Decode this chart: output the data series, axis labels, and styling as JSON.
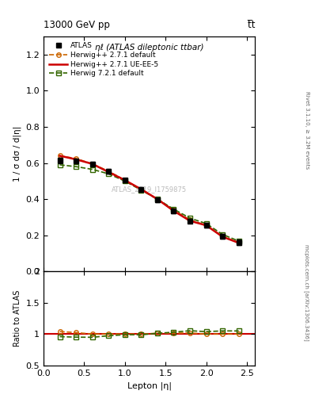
{
  "title_top": "13000 GeV pp",
  "title_top_right": "t̅t",
  "main_title": "ηℓ (ATLAS dileptonic ttbar)",
  "watermark": "ATLAS_2019_I1759875",
  "right_label_top": "Rivet 3.1.10, ≥ 3.2M events",
  "right_label_bottom": "mcplots.cern.ch [arXiv:1306.3436]",
  "xlabel": "Lepton |η|",
  "ylabel_main": "1 / σ dσ / d|η|",
  "ylabel_ratio": "Ratio to ATLAS",
  "xlim": [
    0.0,
    2.6
  ],
  "ylim_main": [
    0.0,
    1.3
  ],
  "ylim_ratio": [
    0.5,
    2.0
  ],
  "yticks_main": [
    0.0,
    0.2,
    0.4,
    0.6,
    0.8,
    1.0,
    1.2
  ],
  "yticks_ratio": [
    0.5,
    1.0,
    1.5,
    2.0
  ],
  "xticks": [
    0.0,
    0.5,
    1.0,
    1.5,
    2.0,
    2.5
  ],
  "atlas_x": [
    0.2,
    0.4,
    0.6,
    0.8,
    1.0,
    1.2,
    1.4,
    1.6,
    1.8,
    2.0,
    2.2,
    2.4
  ],
  "atlas_y": [
    0.615,
    0.61,
    0.595,
    0.555,
    0.505,
    0.455,
    0.395,
    0.335,
    0.28,
    0.255,
    0.195,
    0.16
  ],
  "atlas_yerr": [
    0.015,
    0.012,
    0.012,
    0.012,
    0.012,
    0.012,
    0.012,
    0.012,
    0.012,
    0.012,
    0.012,
    0.015
  ],
  "hw271_default_x": [
    0.2,
    0.4,
    0.6,
    0.8,
    1.0,
    1.2,
    1.4,
    1.6,
    1.8,
    2.0,
    2.2,
    2.4
  ],
  "hw271_default_y": [
    0.64,
    0.625,
    0.595,
    0.555,
    0.505,
    0.455,
    0.4,
    0.34,
    0.285,
    0.255,
    0.195,
    0.16
  ],
  "hw271_uee5_x": [
    0.2,
    0.4,
    0.6,
    0.8,
    1.0,
    1.2,
    1.4,
    1.6,
    1.8,
    2.0,
    2.2,
    2.4
  ],
  "hw271_uee5_y": [
    0.64,
    0.62,
    0.595,
    0.55,
    0.505,
    0.455,
    0.4,
    0.335,
    0.28,
    0.255,
    0.192,
    0.158
  ],
  "hw721_default_x": [
    0.2,
    0.4,
    0.6,
    0.8,
    1.0,
    1.2,
    1.4,
    1.6,
    1.8,
    2.0,
    2.2,
    2.4
  ],
  "hw721_default_y": [
    0.59,
    0.58,
    0.565,
    0.54,
    0.5,
    0.45,
    0.4,
    0.345,
    0.295,
    0.265,
    0.205,
    0.168
  ],
  "ratio_hw271_default": [
    1.04,
    1.024,
    1.0,
    1.0,
    1.0,
    1.0,
    1.013,
    1.015,
    1.018,
    1.0,
    1.0,
    1.0
  ],
  "ratio_hw721_default": [
    0.959,
    0.951,
    0.949,
    0.973,
    0.99,
    0.989,
    1.013,
    1.03,
    1.054,
    1.039,
    1.051,
    1.05
  ],
  "color_atlas": "#000000",
  "color_hw271_default": "#cc6600",
  "color_hw271_uee5": "#cc0000",
  "color_hw721_default": "#336600",
  "bg_color": "#ffffff"
}
